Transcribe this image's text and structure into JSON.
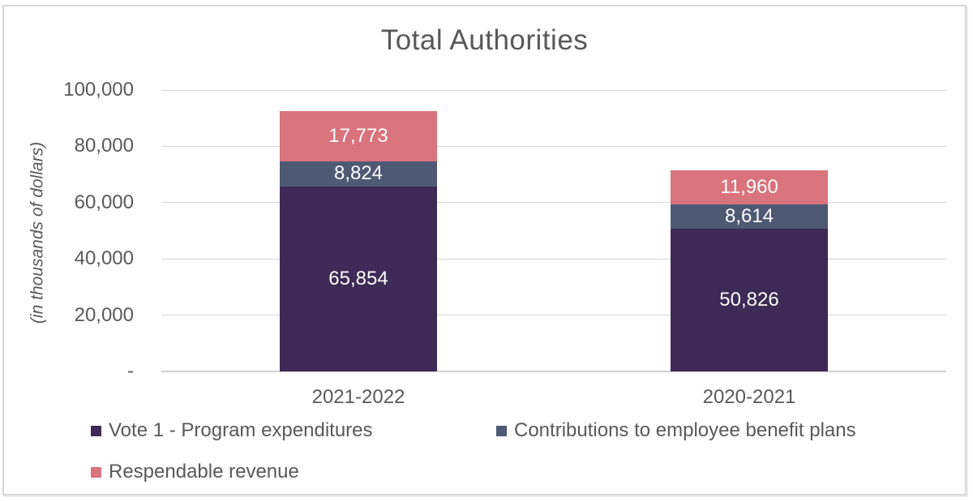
{
  "chart_data": {
    "type": "bar",
    "stacked": true,
    "title": "Total Authorities",
    "ylabel": "(in thousands of dollars)",
    "xlabel": "",
    "categories": [
      "2021-2022",
      "2020-2021"
    ],
    "series": [
      {
        "name": "Vote 1 - Program expenditures",
        "color": "#3e2a56",
        "values": [
          65854,
          50826
        ],
        "labels": [
          "65,854",
          "50,826"
        ]
      },
      {
        "name": "Contributions to employee benefit plans",
        "color": "#4e5a74",
        "values": [
          8824,
          8614
        ],
        "labels": [
          "8,824",
          "8,614"
        ]
      },
      {
        "name": "Respendable revenue",
        "color": "#d9737d",
        "values": [
          17773,
          11960
        ],
        "labels": [
          "17,773",
          "11,960"
        ]
      }
    ],
    "totals": [
      92451,
      71400
    ],
    "ylim": [
      0,
      100000
    ],
    "ytick_step": 20000,
    "ytick_labels_bottom_up": [
      "-",
      "20,000",
      "40,000",
      "60,000",
      "80,000",
      "100,000"
    ],
    "grid": true,
    "legend_position": "bottom",
    "colors": {
      "text": "#595959",
      "gridline": "#d6d6d6",
      "axis_line": "#d0d0d0",
      "data_label": "#fdfdfd",
      "frame_border": "#d8d8d8",
      "background": "#ffffff"
    }
  }
}
